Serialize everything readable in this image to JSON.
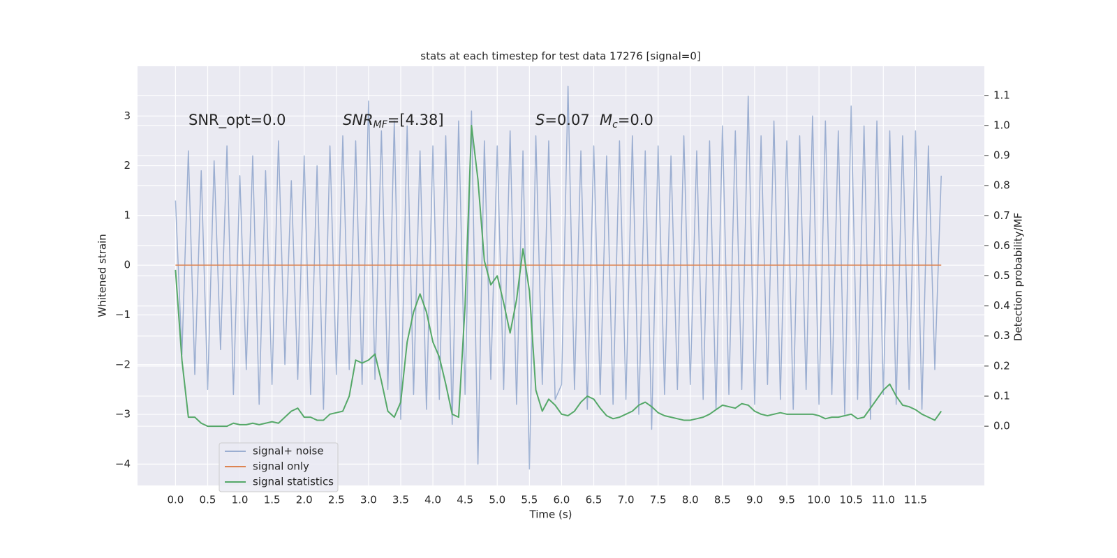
{
  "chart_data": {
    "type": "line",
    "title": "stats at each timestep for test data 17276 [signal=0]",
    "xlabel": "Time (s)",
    "ylabel": "Whitened strain",
    "y2label": "Detection probability/MF",
    "annotations": [
      [
        {
          "text": "SNR_opt=0.0",
          "style": "normal"
        }
      ],
      [
        {
          "text": "SNR",
          "style": "italic"
        },
        {
          "text": "MF",
          "style": "italic-sub"
        },
        {
          "text": "=[4.38]",
          "style": "normal"
        }
      ],
      [
        {
          "text": "S",
          "style": "italic"
        },
        {
          "text": "=0.07",
          "style": "normal"
        }
      ],
      [
        {
          "text": "M",
          "style": "italic"
        },
        {
          "text": "c",
          "style": "italic-sub"
        },
        {
          "text": "=0.0",
          "style": "normal"
        }
      ]
    ],
    "grid": true,
    "legend": "lower left",
    "xlim": [
      -0.59,
      12.57
    ],
    "ylim": [
      -4.43,
      4.0
    ],
    "y2lim": [
      -0.197,
      1.197
    ],
    "xticks": [
      {
        "value": 0,
        "label": "0.0"
      },
      {
        "value": 0.5,
        "label": "0.5"
      },
      {
        "value": 1,
        "label": "1.0"
      },
      {
        "value": 1.5,
        "label": "1.5"
      },
      {
        "value": 2,
        "label": "2.0"
      },
      {
        "value": 2.5,
        "label": "2.5"
      },
      {
        "value": 3,
        "label": "3.0"
      },
      {
        "value": 3.5,
        "label": "3.5"
      },
      {
        "value": 4,
        "label": "4.0"
      },
      {
        "value": 4.5,
        "label": "4.5"
      },
      {
        "value": 5,
        "label": "5.0"
      },
      {
        "value": 5.5,
        "label": "5.5"
      },
      {
        "value": 6,
        "label": "6.0"
      },
      {
        "value": 6.5,
        "label": "6.5"
      },
      {
        "value": 7,
        "label": "7.0"
      },
      {
        "value": 7.5,
        "label": "7.5"
      },
      {
        "value": 8,
        "label": "8.0"
      },
      {
        "value": 8.5,
        "label": "8.5"
      },
      {
        "value": 9,
        "label": "9.0"
      },
      {
        "value": 9.5,
        "label": "9.5"
      },
      {
        "value": 10,
        "label": "10.0"
      },
      {
        "value": 10.5,
        "label": "10.5"
      },
      {
        "value": 11,
        "label": "11.0"
      },
      {
        "value": 11.5,
        "label": "11.5"
      }
    ],
    "yticks": [
      {
        "value": -4,
        "label": "−4"
      },
      {
        "value": -3,
        "label": "−3"
      },
      {
        "value": -2,
        "label": "−2"
      },
      {
        "value": -1,
        "label": "−1"
      },
      0,
      1,
      2,
      3
    ],
    "y2ticks": [
      {
        "value": 0,
        "label": "0.0"
      },
      {
        "value": 0.1,
        "label": "0.1"
      },
      {
        "value": 0.2,
        "label": "0.2"
      },
      {
        "value": 0.3,
        "label": "0.3"
      },
      {
        "value": 0.4,
        "label": "0.4"
      },
      {
        "value": 0.5,
        "label": "0.5"
      },
      {
        "value": 0.6,
        "label": "0.6"
      },
      {
        "value": 0.7,
        "label": "0.7"
      },
      {
        "value": 0.8,
        "label": "0.8"
      },
      {
        "value": 0.9,
        "label": "0.9"
      },
      {
        "value": 1.0,
        "label": "1.0"
      },
      {
        "value": 1.1,
        "label": "1.1"
      }
    ],
    "x": [
      0.0,
      0.1,
      0.2,
      0.3,
      0.4,
      0.5,
      0.6,
      0.7,
      0.8,
      0.9,
      1.0,
      1.1,
      1.2,
      1.3,
      1.4,
      1.5,
      1.6,
      1.7,
      1.8,
      1.9,
      2.0,
      2.1,
      2.2,
      2.3,
      2.4,
      2.5,
      2.6,
      2.7,
      2.8,
      2.9,
      3.0,
      3.1,
      3.2,
      3.3,
      3.4,
      3.5,
      3.6,
      3.7,
      3.8,
      3.9,
      4.0,
      4.1,
      4.2,
      4.3,
      4.4,
      4.5,
      4.6,
      4.7,
      4.8,
      4.9,
      5.0,
      5.1,
      5.2,
      5.3,
      5.4,
      5.5,
      5.6,
      5.7,
      5.8,
      5.9,
      6.0,
      6.1,
      6.2,
      6.3,
      6.4,
      6.5,
      6.6,
      6.7,
      6.8,
      6.9,
      7.0,
      7.1,
      7.2,
      7.3,
      7.4,
      7.5,
      7.6,
      7.7,
      7.8,
      7.9,
      8.0,
      8.1,
      8.2,
      8.3,
      8.4,
      8.5,
      8.6,
      8.7,
      8.8,
      8.9,
      9.0,
      9.1,
      9.2,
      9.3,
      9.4,
      9.5,
      9.6,
      9.7,
      9.8,
      9.9,
      10.0,
      10.1,
      10.2,
      10.3,
      10.4,
      10.5,
      10.6,
      10.7,
      10.8,
      10.9,
      11.0,
      11.1,
      11.2,
      11.3,
      11.4,
      11.5,
      11.6,
      11.7,
      11.8,
      11.9
    ],
    "series": [
      {
        "name": "signal+ noise",
        "color": "#4c72b0",
        "alpha": 0.5,
        "values": [
          1.3,
          -1.8,
          2.3,
          -2.2,
          1.9,
          -2.5,
          2.1,
          -1.7,
          2.4,
          -2.6,
          1.8,
          -2.1,
          2.2,
          -2.8,
          1.9,
          -2.4,
          2.5,
          -2.0,
          1.7,
          -2.3,
          2.2,
          -2.6,
          2.0,
          -2.9,
          2.4,
          -2.2,
          2.6,
          -2.1,
          2.5,
          -2.4,
          3.3,
          -2.3,
          2.7,
          -2.5,
          2.9,
          -3.1,
          2.8,
          -2.6,
          2.3,
          -2.9,
          2.4,
          -2.7,
          2.6,
          -3.2,
          2.9,
          -2.6,
          3.1,
          -4.0,
          2.5,
          -2.3,
          2.4,
          -2.5,
          2.7,
          -2.8,
          2.3,
          -4.1,
          2.6,
          -2.4,
          2.5,
          -2.7,
          -2.4,
          3.6,
          -2.5,
          2.3,
          -2.9,
          2.4,
          -2.6,
          2.2,
          -2.8,
          2.5,
          -2.7,
          2.6,
          -3.0,
          2.3,
          -3.3,
          2.4,
          -2.6,
          2.2,
          -2.5,
          2.6,
          -2.4,
          2.3,
          -2.7,
          2.5,
          -2.9,
          2.8,
          -2.6,
          2.7,
          -2.5,
          3.4,
          -2.8,
          2.6,
          -2.4,
          2.9,
          -2.7,
          2.5,
          -2.9,
          2.6,
          -2.5,
          3.0,
          -2.8,
          2.9,
          -2.6,
          2.7,
          -3.0,
          3.2,
          -2.7,
          2.8,
          -3.1,
          2.9,
          -2.6,
          2.7,
          -2.8,
          2.6,
          -2.5,
          2.7,
          -2.9,
          2.4,
          -2.1,
          1.8
        ]
      },
      {
        "name": "signal only",
        "color": "#dd8452",
        "alpha": 1,
        "values": [
          0,
          0,
          0,
          0,
          0,
          0,
          0,
          0,
          0,
          0,
          0,
          0,
          0,
          0,
          0,
          0,
          0,
          0,
          0,
          0,
          0,
          0,
          0,
          0,
          0,
          0,
          0,
          0,
          0,
          0,
          0,
          0,
          0,
          0,
          0,
          0,
          0,
          0,
          0,
          0,
          0,
          0,
          0,
          0,
          0,
          0,
          0,
          0,
          0,
          0,
          0,
          0,
          0,
          0,
          0,
          0,
          0,
          0,
          0,
          0,
          0,
          0,
          0,
          0,
          0,
          0,
          0,
          0,
          0,
          0,
          0,
          0,
          0,
          0,
          0,
          0,
          0,
          0,
          0,
          0,
          0,
          0,
          0,
          0,
          0,
          0,
          0,
          0,
          0,
          0,
          0,
          0,
          0,
          0,
          0,
          0,
          0,
          0,
          0,
          0,
          0,
          0,
          0,
          0,
          0,
          0,
          0,
          0,
          0,
          0,
          0,
          0,
          0,
          0,
          0,
          0,
          0,
          0,
          0,
          0
        ]
      },
      {
        "name": "signal statistics",
        "color": "#55a868",
        "alpha": 1,
        "axis": "y2",
        "values": [
          0.52,
          0.22,
          0.03,
          0.03,
          0.01,
          0.0,
          0.0,
          0.0,
          0.0,
          0.01,
          0.005,
          0.005,
          0.01,
          0.005,
          0.01,
          0.015,
          0.01,
          0.03,
          0.05,
          0.06,
          0.03,
          0.03,
          0.02,
          0.02,
          0.04,
          0.045,
          0.05,
          0.1,
          0.22,
          0.21,
          0.22,
          0.24,
          0.15,
          0.05,
          0.03,
          0.08,
          0.28,
          0.38,
          0.44,
          0.38,
          0.28,
          0.23,
          0.14,
          0.04,
          0.03,
          0.4,
          1.0,
          0.82,
          0.55,
          0.47,
          0.5,
          0.41,
          0.31,
          0.42,
          0.59,
          0.45,
          0.12,
          0.05,
          0.09,
          0.07,
          0.04,
          0.035,
          0.05,
          0.08,
          0.1,
          0.09,
          0.06,
          0.035,
          0.025,
          0.03,
          0.04,
          0.05,
          0.07,
          0.08,
          0.065,
          0.045,
          0.035,
          0.03,
          0.025,
          0.02,
          0.02,
          0.025,
          0.03,
          0.04,
          0.055,
          0.07,
          0.065,
          0.06,
          0.075,
          0.07,
          0.05,
          0.04,
          0.035,
          0.04,
          0.045,
          0.04,
          0.04,
          0.04,
          0.04,
          0.04,
          0.035,
          0.025,
          0.03,
          0.03,
          0.035,
          0.04,
          0.025,
          0.03,
          0.06,
          0.09,
          0.12,
          0.14,
          0.1,
          0.07,
          0.065,
          0.055,
          0.04,
          0.03,
          0.02,
          0.05
        ]
      }
    ]
  }
}
